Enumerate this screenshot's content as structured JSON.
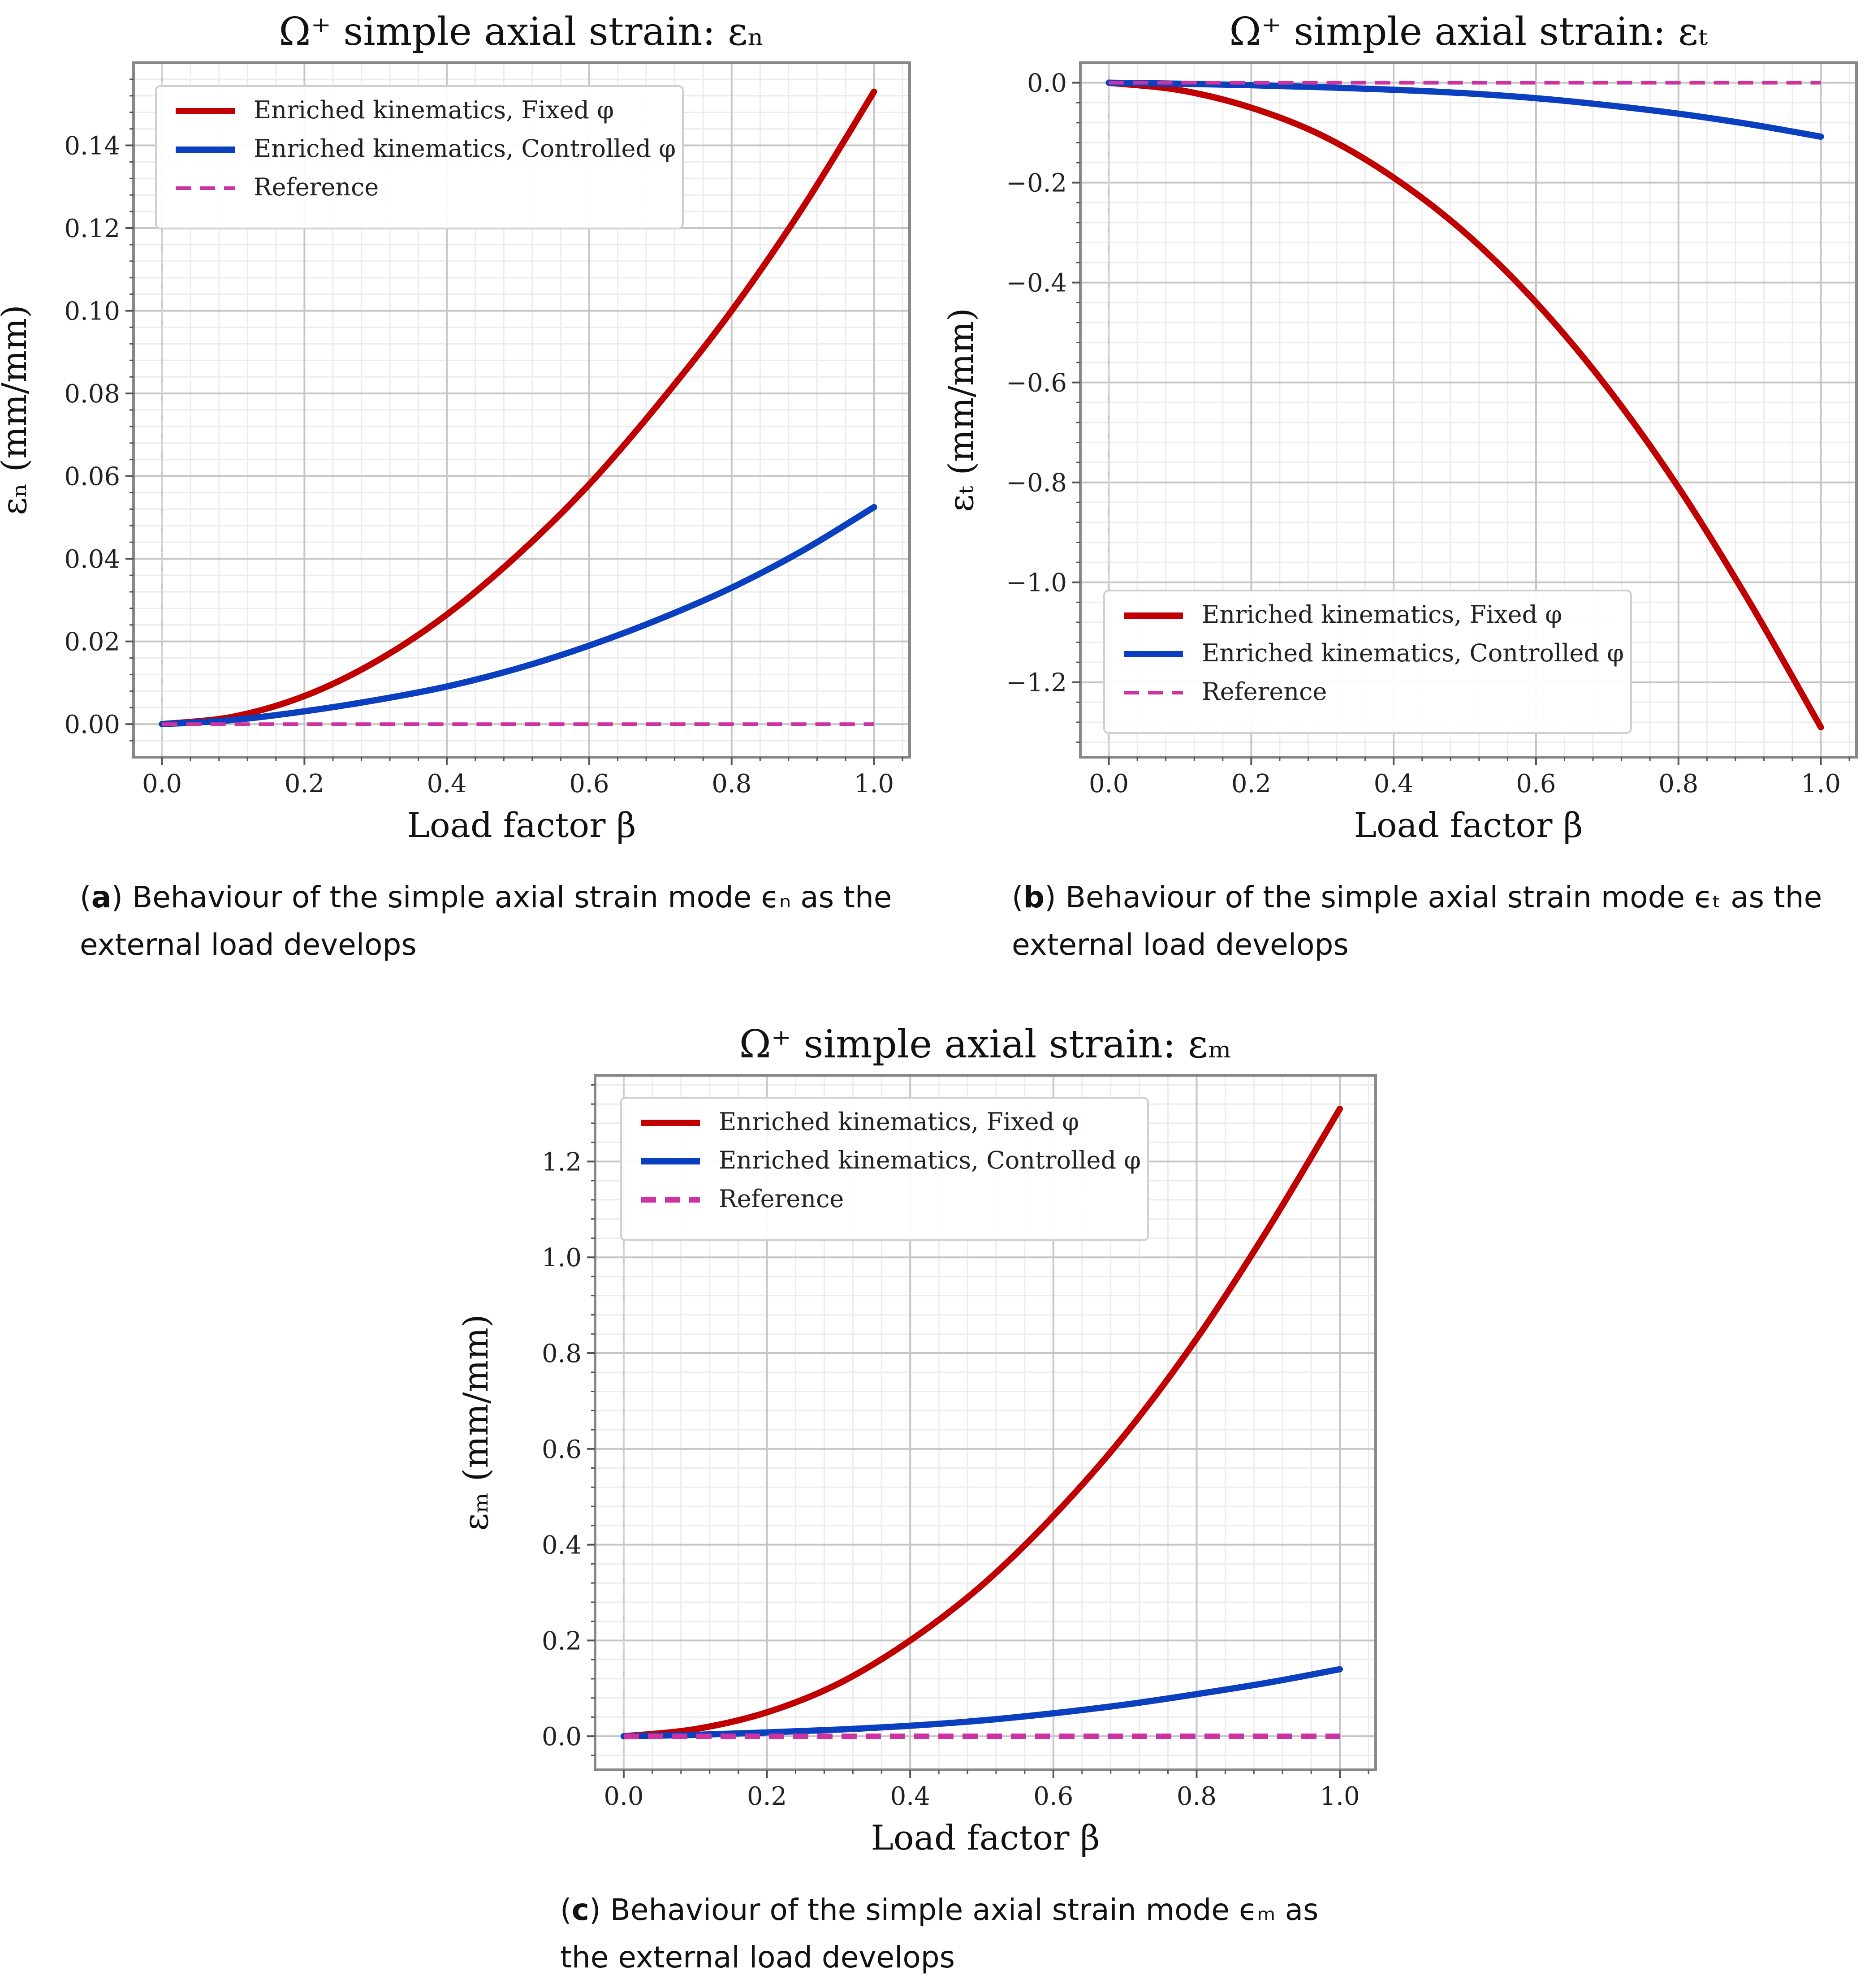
{
  "chart_data": [
    {
      "id": "a",
      "type": "line",
      "title": "Ω⁺ simple axial strain: εₙ",
      "xlabel": "Load factor β",
      "ylabel": "εₙ (mm/mm)",
      "xlim": [
        -0.04,
        1.05
      ],
      "ylim": [
        -0.008,
        0.16
      ],
      "xticks": [
        0.0,
        0.2,
        0.4,
        0.6,
        0.8,
        1.0
      ],
      "xtick_labels": [
        "0.0",
        "0.2",
        "0.4",
        "0.6",
        "0.8",
        "1.0"
      ],
      "yticks": [
        0.0,
        0.02,
        0.04,
        0.06,
        0.08,
        0.1,
        0.12,
        0.14
      ],
      "ytick_labels": [
        "0.00",
        "0.02",
        "0.04",
        "0.06",
        "0.08",
        "0.10",
        "0.12",
        "0.14"
      ],
      "grid": true,
      "legend": "upper-left",
      "series": [
        {
          "name": "Enriched kinematics, Fixed φ",
          "color": "#c00000",
          "style": "solid",
          "x": [
            0.0,
            0.1,
            0.2,
            0.3,
            0.4,
            0.5,
            0.6,
            0.7,
            0.8,
            0.9,
            1.0
          ],
          "y": [
            0.0,
            0.0018,
            0.0068,
            0.0151,
            0.0265,
            0.041,
            0.058,
            0.078,
            0.1,
            0.125,
            0.153
          ]
        },
        {
          "name": "Enriched kinematics, Controlled φ",
          "color": "#0a3fc0",
          "style": "solid",
          "x": [
            0.0,
            0.1,
            0.2,
            0.3,
            0.4,
            0.5,
            0.6,
            0.7,
            0.8,
            0.9,
            1.0
          ],
          "y": [
            0.0,
            0.001,
            0.0031,
            0.0058,
            0.0091,
            0.0135,
            0.019,
            0.0255,
            0.033,
            0.042,
            0.0525
          ]
        },
        {
          "name": "Reference",
          "color": "#cc33a0",
          "style": "dashed",
          "x": [
            0.0,
            1.0
          ],
          "y": [
            0.0,
            0.0
          ]
        }
      ]
    },
    {
      "id": "b",
      "type": "line",
      "title": "Ω⁺ simple axial strain: εₜ",
      "xlabel": "Load factor β",
      "ylabel": "εₜ (mm/mm)",
      "xlim": [
        -0.04,
        1.05
      ],
      "ylim": [
        -1.35,
        0.04
      ],
      "xticks": [
        0.0,
        0.2,
        0.4,
        0.6,
        0.8,
        1.0
      ],
      "xtick_labels": [
        "0.0",
        "0.2",
        "0.4",
        "0.6",
        "0.8",
        "1.0"
      ],
      "yticks": [
        0.0,
        -0.2,
        -0.4,
        -0.6,
        -0.8,
        -1.0,
        -1.2
      ],
      "ytick_labels": [
        "0.0",
        "−0.2",
        "−0.4",
        "−0.6",
        "−0.8",
        "−1.0",
        "−1.2"
      ],
      "grid": true,
      "legend": "lower-left",
      "series": [
        {
          "name": "Enriched kinematics, Fixed φ",
          "color": "#c00000",
          "style": "solid",
          "x": [
            0.0,
            0.1,
            0.2,
            0.3,
            0.4,
            0.5,
            0.6,
            0.7,
            0.8,
            0.9,
            1.0
          ],
          "y": [
            0.0,
            -0.015,
            -0.05,
            -0.106,
            -0.19,
            -0.3,
            -0.44,
            -0.61,
            -0.81,
            -1.04,
            -1.29
          ]
        },
        {
          "name": "Enriched kinematics, Controlled φ",
          "color": "#0a3fc0",
          "style": "solid",
          "x": [
            0.0,
            0.1,
            0.2,
            0.3,
            0.4,
            0.5,
            0.6,
            0.7,
            0.8,
            0.9,
            1.0
          ],
          "y": [
            0.0,
            -0.002,
            -0.005,
            -0.009,
            -0.014,
            -0.021,
            -0.031,
            -0.045,
            -0.062,
            -0.083,
            -0.108
          ]
        },
        {
          "name": "Reference",
          "color": "#cc33a0",
          "style": "dashed",
          "x": [
            0.0,
            1.0
          ],
          "y": [
            0.0,
            0.0
          ]
        }
      ]
    },
    {
      "id": "c",
      "type": "line",
      "title": "Ω⁺ simple axial strain: εₘ",
      "xlabel": "Load factor β",
      "ylabel": "εₘ (mm/mm)",
      "xlim": [
        -0.04,
        1.05
      ],
      "ylim": [
        -0.07,
        1.38
      ],
      "xticks": [
        0.0,
        0.2,
        0.4,
        0.6,
        0.8,
        1.0
      ],
      "xtick_labels": [
        "0.0",
        "0.2",
        "0.4",
        "0.6",
        "0.8",
        "1.0"
      ],
      "yticks": [
        0.0,
        0.2,
        0.4,
        0.6,
        0.8,
        1.0,
        1.2
      ],
      "ytick_labels": [
        "0.0",
        "0.2",
        "0.4",
        "0.6",
        "0.8",
        "1.0",
        "1.2"
      ],
      "grid": true,
      "legend": "upper-left",
      "series": [
        {
          "name": "Enriched kinematics, Fixed φ",
          "color": "#c00000",
          "style": "solid",
          "x": [
            0.0,
            0.1,
            0.2,
            0.3,
            0.4,
            0.5,
            0.6,
            0.7,
            0.8,
            0.9,
            1.0
          ],
          "y": [
            0.0,
            0.015,
            0.05,
            0.11,
            0.2,
            0.315,
            0.46,
            0.63,
            0.83,
            1.06,
            1.31
          ]
        },
        {
          "name": "Enriched kinematics, Controlled φ",
          "color": "#0a3fc0",
          "style": "solid",
          "x": [
            0.0,
            0.1,
            0.2,
            0.3,
            0.4,
            0.5,
            0.6,
            0.7,
            0.8,
            0.9,
            1.0
          ],
          "y": [
            0.0,
            0.003,
            0.008,
            0.014,
            0.022,
            0.033,
            0.048,
            0.066,
            0.088,
            0.112,
            0.14
          ]
        },
        {
          "name": "Reference",
          "color": "#cc33a0",
          "style": "dashed",
          "x": [
            0.0,
            1.0
          ],
          "y": [
            0.0,
            0.0
          ]
        }
      ]
    }
  ],
  "captions": {
    "a": {
      "label": "a",
      "text": "Behaviour of the simple axial strain mode ϵₙ as the external load develops"
    },
    "b": {
      "label": "b",
      "text": "Behaviour of the simple axial strain mode ϵₜ as the external load develops"
    },
    "c": {
      "label": "c",
      "text": "Behaviour of the simple axial strain mode ϵₘ as the external load develops"
    }
  }
}
